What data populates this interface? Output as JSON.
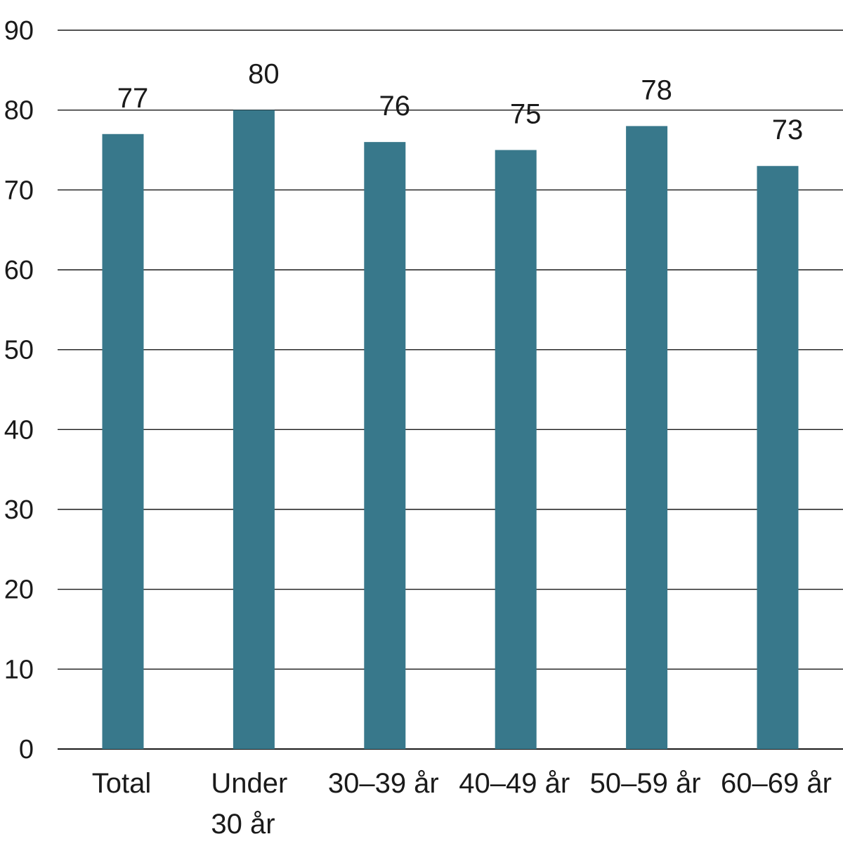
{
  "chart_data": {
    "type": "bar",
    "categories": [
      "Total",
      "Under 30 år",
      "30–39 år",
      "40–49 år",
      "50–59 år",
      "60–69 år"
    ],
    "category_lines": [
      [
        "Total"
      ],
      [
        "Under",
        "30 år"
      ],
      [
        "30–39 år"
      ],
      [
        "40–49 år"
      ],
      [
        "50–59 år"
      ],
      [
        "60–69 år"
      ]
    ],
    "values": [
      77,
      80,
      76,
      75,
      78,
      73
    ],
    "data_labels": [
      "77",
      "80",
      "76",
      "75",
      "78",
      "73"
    ],
    "ylim": [
      0,
      90
    ],
    "yticks": [
      0,
      10,
      20,
      30,
      40,
      50,
      60,
      70,
      80,
      90
    ],
    "ytick_labels": [
      "0",
      "10",
      "20",
      "30",
      "40",
      "50",
      "60",
      "70",
      "80",
      "90"
    ],
    "grid": true,
    "legend": "none",
    "title": "",
    "xlabel": "",
    "ylabel": "",
    "bar_color": "#38788b",
    "grid_color": "#1a1a1a"
  }
}
